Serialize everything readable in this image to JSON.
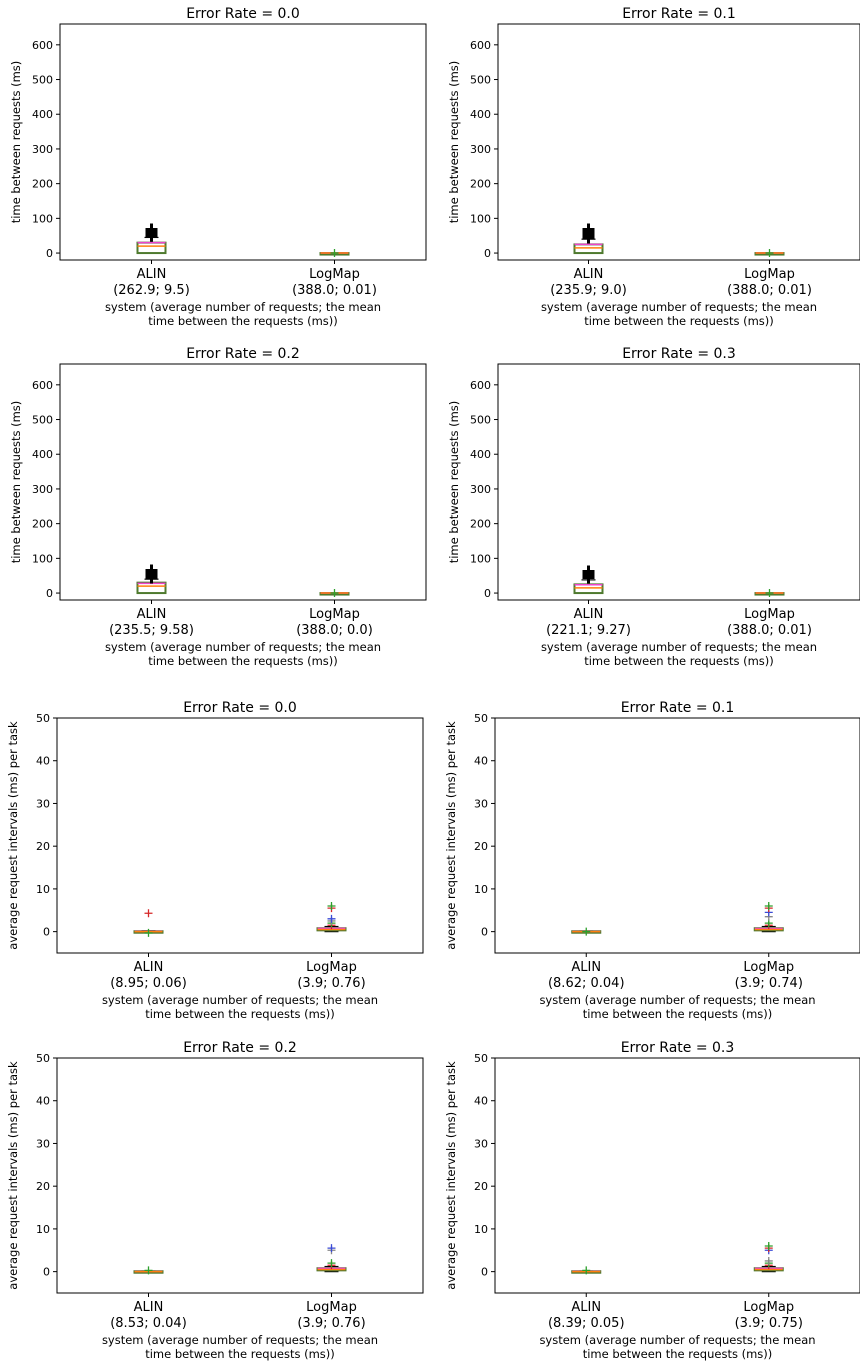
{
  "figure": {
    "xlabel_line1": "system (average number of requests; the mean",
    "xlabel_line2": "time between the requests (ms))"
  },
  "colors": {
    "box": "#4e7a2e",
    "median": "#ff7f0e",
    "mean_line": "#ee44cc",
    "whisker": "#000000",
    "flier_red": "#d62728",
    "flier_green": "#2ca02c",
    "flier_blue": "#3b4bd6",
    "flier_grey": "#888888"
  },
  "chart_data": [
    {
      "type": "box",
      "title": "Error Rate = 0.0",
      "ylabel": "time between requests (ms)",
      "xlabel": "system (average number of requests; the mean time between the requests (ms))",
      "ylim": [
        -20,
        660
      ],
      "yticks": [
        0,
        100,
        200,
        300,
        400,
        500,
        600
      ],
      "categories": [
        {
          "name": "ALIN",
          "annotation": "(262.9; 9.5)",
          "box": {
            "q1": 0,
            "median": 20,
            "q3": 30,
            "whislo": 0,
            "whishi": 45,
            "mean": 30
          },
          "fliers": [
            50,
            52,
            55,
            58,
            62,
            68
          ]
        },
        {
          "name": "LogMap",
          "annotation": "(388.0; 0.01)",
          "box": {
            "q1": 0,
            "median": 0,
            "q3": 0,
            "whislo": 0,
            "whishi": 0,
            "mean": 0
          },
          "fliers": [
            0
          ]
        }
      ]
    },
    {
      "type": "box",
      "title": "Error Rate = 0.1",
      "ylabel": "time between requests (ms)",
      "xlabel": "system (average number of requests; the mean time between the requests (ms))",
      "ylim": [
        -20,
        660
      ],
      "yticks": [
        0,
        100,
        200,
        300,
        400,
        500,
        600
      ],
      "categories": [
        {
          "name": "ALIN",
          "annotation": "(235.9; 9.0)",
          "box": {
            "q1": 0,
            "median": 15,
            "q3": 25,
            "whislo": 0,
            "whishi": 40,
            "mean": 25
          },
          "fliers": [
            45,
            48,
            50,
            53,
            56,
            60,
            68
          ]
        },
        {
          "name": "LogMap",
          "annotation": "(388.0; 0.01)",
          "box": {
            "q1": 0,
            "median": 0,
            "q3": 0,
            "whislo": 0,
            "whishi": 0,
            "mean": 0
          },
          "fliers": [
            0
          ]
        }
      ]
    },
    {
      "type": "box",
      "title": "Error Rate = 0.2",
      "ylabel": "time between requests (ms)",
      "xlabel": "system (average number of requests; the mean time between the requests (ms))",
      "ylim": [
        -20,
        660
      ],
      "yticks": [
        0,
        100,
        200,
        300,
        400,
        500,
        600
      ],
      "categories": [
        {
          "name": "ALIN",
          "annotation": "(235.5; 9.58)",
          "box": {
            "q1": 0,
            "median": 20,
            "q3": 30,
            "whislo": 0,
            "whishi": 40,
            "mean": 28
          },
          "fliers": [
            45,
            48,
            50,
            55,
            60,
            65
          ]
        },
        {
          "name": "LogMap",
          "annotation": "(388.0; 0.0)",
          "box": {
            "q1": 0,
            "median": 0,
            "q3": 0,
            "whislo": 0,
            "whishi": 0,
            "mean": 0
          },
          "fliers": [
            0
          ]
        }
      ]
    },
    {
      "type": "box",
      "title": "Error Rate = 0.3",
      "ylabel": "time between requests (ms)",
      "xlabel": "system (average number of requests; the mean time between the requests (ms))",
      "ylim": [
        -20,
        660
      ],
      "yticks": [
        0,
        100,
        200,
        300,
        400,
        500,
        600
      ],
      "categories": [
        {
          "name": "ALIN",
          "annotation": "(221.1; 9.27)",
          "box": {
            "q1": 0,
            "median": 15,
            "q3": 25,
            "whislo": 0,
            "whishi": 38,
            "mean": 24
          },
          "fliers": [
            45,
            48,
            50,
            53,
            56,
            60,
            62
          ]
        },
        {
          "name": "LogMap",
          "annotation": "(388.0; 0.01)",
          "box": {
            "q1": 0,
            "median": 0,
            "q3": 0,
            "whislo": 0,
            "whishi": 0,
            "mean": 0
          },
          "fliers": [
            0
          ]
        }
      ]
    },
    {
      "type": "box",
      "title": "Error Rate = 0.0",
      "ylabel": "average request intervals (ms) per task",
      "xlabel": "system (average number of requests; the mean time between the requests (ms))",
      "ylim": [
        -5,
        50
      ],
      "yticks": [
        0,
        10,
        20,
        30,
        40,
        50
      ],
      "categories": [
        {
          "name": "ALIN",
          "annotation": "(8.95; 0.06)",
          "box": {
            "q1": 0,
            "median": 0,
            "q3": 0.1,
            "whislo": 0,
            "whishi": 0.2,
            "mean": 0.06
          },
          "fliers": [
            4.3,
            -0.3
          ]
        },
        {
          "name": "LogMap",
          "annotation": "(3.9; 0.76)",
          "box": {
            "q1": 0.3,
            "median": 0.5,
            "q3": 0.8,
            "whislo": 0,
            "whishi": 1.2,
            "mean": 0.76
          },
          "fliers": [
            1.5,
            2.0,
            2.5,
            3.0,
            5.5,
            6.0
          ]
        }
      ]
    },
    {
      "type": "box",
      "title": "Error Rate = 0.1",
      "ylabel": "average request intervals (ms) per task",
      "xlabel": "system (average number of requests; the mean time between the requests (ms))",
      "ylim": [
        -5,
        50
      ],
      "yticks": [
        0,
        10,
        20,
        30,
        40,
        50
      ],
      "categories": [
        {
          "name": "ALIN",
          "annotation": "(8.62; 0.04)",
          "box": {
            "q1": 0,
            "median": 0,
            "q3": 0.1,
            "whislo": 0,
            "whishi": 0.15,
            "mean": 0.04
          },
          "fliers": [
            0
          ]
        },
        {
          "name": "LogMap",
          "annotation": "(3.9; 0.74)",
          "box": {
            "q1": 0.3,
            "median": 0.5,
            "q3": 0.8,
            "whislo": 0,
            "whishi": 1.2,
            "mean": 0.74
          },
          "fliers": [
            1.5,
            2.0,
            3.5,
            4.5,
            5.5,
            6.0
          ]
        }
      ]
    },
    {
      "type": "box",
      "title": "Error Rate = 0.2",
      "ylabel": "average request intervals (ms) per task",
      "xlabel": "system (average number of requests; the mean time between the requests (ms))",
      "ylim": [
        -5,
        50
      ],
      "yticks": [
        0,
        10,
        20,
        30,
        40,
        50
      ],
      "categories": [
        {
          "name": "ALIN",
          "annotation": "(8.53; 0.04)",
          "box": {
            "q1": 0,
            "median": 0,
            "q3": 0.1,
            "whislo": 0,
            "whishi": 0.15,
            "mean": 0.04
          },
          "fliers": [
            0.3
          ]
        },
        {
          "name": "LogMap",
          "annotation": "(3.9; 0.76)",
          "box": {
            "q1": 0.3,
            "median": 0.5,
            "q3": 0.8,
            "whislo": 0,
            "whishi": 1.2,
            "mean": 0.76
          },
          "fliers": [
            1.5,
            2.0,
            5.0,
            5.5
          ]
        }
      ]
    },
    {
      "type": "box",
      "title": "Error Rate = 0.3",
      "ylabel": "average request intervals (ms) per task",
      "xlabel": "system (average number of requests; the mean time between the requests (ms))",
      "ylim": [
        -5,
        50
      ],
      "yticks": [
        0,
        10,
        20,
        30,
        40,
        50
      ],
      "categories": [
        {
          "name": "ALIN",
          "annotation": "(8.39; 0.05)",
          "box": {
            "q1": 0,
            "median": 0,
            "q3": 0.1,
            "whislo": 0,
            "whishi": 0.15,
            "mean": 0.05
          },
          "fliers": [
            0.3
          ]
        },
        {
          "name": "LogMap",
          "annotation": "(3.9; 0.75)",
          "box": {
            "q1": 0.3,
            "median": 0.5,
            "q3": 0.8,
            "whislo": 0,
            "whishi": 1.2,
            "mean": 0.75
          },
          "fliers": [
            1.5,
            2.0,
            2.5,
            5.0,
            5.5,
            6.0
          ]
        }
      ]
    }
  ]
}
